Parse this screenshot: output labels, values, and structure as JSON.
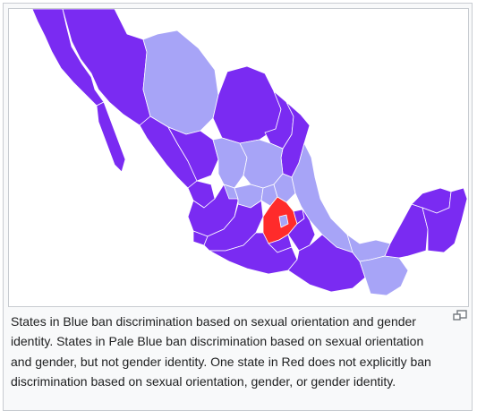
{
  "map": {
    "colors": {
      "blue": "#7a2bf2",
      "pale_blue": "#a7a4f7",
      "red": "#ff2b2b",
      "border": "#ffffff"
    }
  },
  "caption": {
    "text": "States in Blue ban discrimination based on sexual orientation and gender identity. States in Pale Blue ban discrimination based on sexual orientation and gender, but not gender identity. One state in Red does not explicitly ban discrimination based on sexual orientation, gender, or gender identity."
  },
  "icons": {
    "enlarge": "magnify-clip-icon"
  }
}
